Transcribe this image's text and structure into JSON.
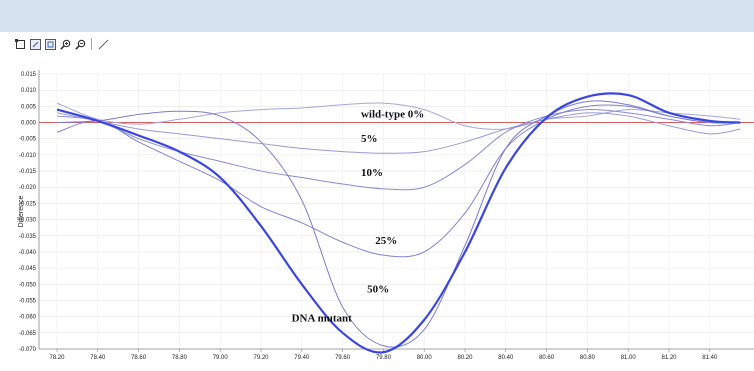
{
  "toolbar": {
    "tools": [
      {
        "name": "select-tool-icon"
      },
      {
        "name": "zoom-area-icon"
      },
      {
        "name": "fit-view-icon"
      },
      {
        "name": "zoom-in-icon"
      },
      {
        "name": "zoom-out-icon"
      },
      {
        "name": "draw-line-icon"
      }
    ]
  },
  "chart_data": {
    "type": "line",
    "title": "",
    "xlabel": "",
    "ylabel": "Difference",
    "xlim": [
      78.2,
      81.55
    ],
    "ylim": [
      -0.07,
      0.015
    ],
    "x_ticks": [
      "78.20",
      "78.40",
      "78.60",
      "78.80",
      "79.00",
      "79.20",
      "79.40",
      "79.60",
      "79.80",
      "80.00",
      "80.20",
      "80.40",
      "80.60",
      "80.80",
      "81.00",
      "81.20",
      "81.40"
    ],
    "y_ticks": [
      "0.015",
      "0.010",
      "0.005",
      "0.000",
      "-0.005",
      "-0.010",
      "-0.015",
      "-0.020",
      "-0.025",
      "-0.030",
      "-0.035",
      "-0.040",
      "-0.045",
      "-0.050",
      "-0.055",
      "-0.060",
      "-0.065",
      "-0.070"
    ],
    "grid": true,
    "reference_line": {
      "y": 0,
      "color": "#d04848"
    },
    "x": [
      78.2,
      78.4,
      78.6,
      78.8,
      79.0,
      79.2,
      79.4,
      79.6,
      79.8,
      80.0,
      80.2,
      80.4,
      80.6,
      80.8,
      81.0,
      81.2,
      81.4,
      81.55
    ],
    "series": [
      {
        "name": "wild-type 0%",
        "color": "#a6a6dc",
        "width": 1,
        "values": [
          0.006,
          0.001,
          -0.0005,
          0.001,
          0.003,
          0.004,
          0.0045,
          0.0055,
          0.006,
          0.004,
          -0.001,
          -0.002,
          0.001,
          0.002,
          0.004,
          0.003,
          0.002,
          0.001
        ]
      },
      {
        "name": "5%",
        "color": "#9a9ad8",
        "width": 1,
        "values": [
          0.003,
          0.0005,
          -0.002,
          -0.0035,
          -0.005,
          -0.0065,
          -0.008,
          -0.009,
          -0.0095,
          -0.009,
          -0.006,
          -0.002,
          0.001,
          0.003,
          0.002,
          -0.001,
          -0.0035,
          -0.002
        ]
      },
      {
        "name": "10%",
        "color": "#8a8ad4",
        "width": 1,
        "values": [
          0.002,
          0.0005,
          -0.005,
          -0.009,
          -0.012,
          -0.015,
          -0.017,
          -0.019,
          -0.0205,
          -0.02,
          -0.013,
          -0.003,
          0.002,
          0.004,
          0.003,
          0.001,
          -0.001,
          0.0
        ]
      },
      {
        "name": "25%",
        "color": "#8282d2",
        "width": 1,
        "values": [
          -0.003,
          0.0005,
          -0.006,
          -0.012,
          -0.018,
          -0.026,
          -0.031,
          -0.037,
          -0.041,
          -0.04,
          -0.028,
          -0.008,
          0.001,
          0.005,
          0.005,
          0.002,
          0.0,
          0.0
        ]
      },
      {
        "name": "50%",
        "color": "#7a7ad0",
        "width": 1,
        "values": [
          0.0,
          0.0005,
          0.0025,
          0.0035,
          0.002,
          -0.006,
          -0.024,
          -0.057,
          -0.069,
          -0.064,
          -0.038,
          -0.008,
          0.002,
          0.0065,
          0.0055,
          0.002,
          0.0,
          0.0
        ]
      },
      {
        "name": "DNA mutant",
        "color": "#3a46e0",
        "width": 2.2,
        "values": [
          0.004,
          0.0005,
          -0.004,
          -0.009,
          -0.017,
          -0.032,
          -0.05,
          -0.065,
          -0.071,
          -0.061,
          -0.04,
          -0.014,
          0.0015,
          0.008,
          0.0085,
          0.003,
          0.0005,
          0.0
        ]
      }
    ],
    "annotations": [
      {
        "text": "wild-type 0%",
        "x": 79.69,
        "y": 0.0015
      },
      {
        "text": "5%",
        "x": 79.69,
        "y": -0.006
      },
      {
        "text": "10%",
        "x": 79.69,
        "y": -0.0165
      },
      {
        "text": "25%",
        "x": 79.76,
        "y": -0.0375
      },
      {
        "text": "50%",
        "x": 79.72,
        "y": -0.0525
      },
      {
        "text": "DNA mutant",
        "x": 79.35,
        "y": -0.0615
      }
    ]
  }
}
